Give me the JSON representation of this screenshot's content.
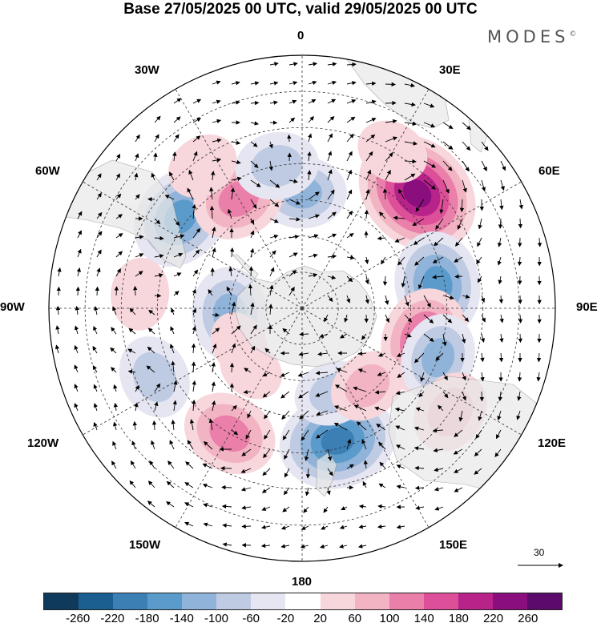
{
  "title": "Base 27/05/2025 00 UTC, valid 29/05/2025 00 UTC",
  "brand": "MODES",
  "brand_mark": "©",
  "longitude_labels": {
    "top": "0",
    "top_left": "30W",
    "top_right": "30E",
    "upper_left": "60W",
    "upper_right": "60E",
    "left": "90W",
    "right": "90E",
    "lower_left": "120W",
    "lower_right": "120E",
    "bottom_left": "150W",
    "bottom_right": "150E",
    "bottom": "180"
  },
  "vector_scale_label": "30",
  "colorbar": {
    "ticks": [
      "-260",
      "-220",
      "-180",
      "-140",
      "-100",
      "-60",
      "-20",
      "20",
      "60",
      "100",
      "140",
      "180",
      "220",
      "260"
    ],
    "colors": [
      "#0f3a5c",
      "#1a5f8f",
      "#3b7fb5",
      "#5b9bcb",
      "#8fb3d9",
      "#bfcbe3",
      "#e6e6f2",
      "#ffffff",
      "#f7d6dc",
      "#f2b3c2",
      "#ea7faa",
      "#de4f99",
      "#b8238a",
      "#8a0e7d",
      "#5c0a6b"
    ]
  },
  "colors": {
    "land": "#e8e8e8",
    "graticule": "#333333",
    "map_border": "#000000"
  },
  "anomaly_centres": [
    {
      "lat": -45,
      "lon": 45,
      "value": 260
    },
    {
      "lat": -52,
      "lon": 80,
      "value": -180
    },
    {
      "lat": -55,
      "lon": 105,
      "value": 180
    },
    {
      "lat": -58,
      "lon": 0,
      "value": -120
    },
    {
      "lat": -48,
      "lon": -53,
      "value": -180
    },
    {
      "lat": -55,
      "lon": -30,
      "value": 140
    },
    {
      "lat": -50,
      "lon": -10,
      "value": -100
    },
    {
      "lat": -40,
      "lon": 30,
      "value": 60
    },
    {
      "lat": -52,
      "lon": 165,
      "value": -220
    },
    {
      "lat": -50,
      "lon": -150,
      "value": 140
    },
    {
      "lat": -45,
      "lon": -115,
      "value": -100
    },
    {
      "lat": -70,
      "lon": -95,
      "value": -140
    },
    {
      "lat": -50,
      "lon": 110,
      "value": -120
    },
    {
      "lat": -40,
      "lon": 125,
      "value": 100
    },
    {
      "lat": -45,
      "lon": -85,
      "value": 60
    },
    {
      "lat": -42,
      "lon": -35,
      "value": 60
    },
    {
      "lat": -65,
      "lon": 160,
      "value": -80
    },
    {
      "lat": -62,
      "lon": 140,
      "value": 80
    },
    {
      "lat": -68,
      "lon": -140,
      "value": 40
    },
    {
      "lat": -70,
      "lon": -120,
      "value": 40
    }
  ]
}
